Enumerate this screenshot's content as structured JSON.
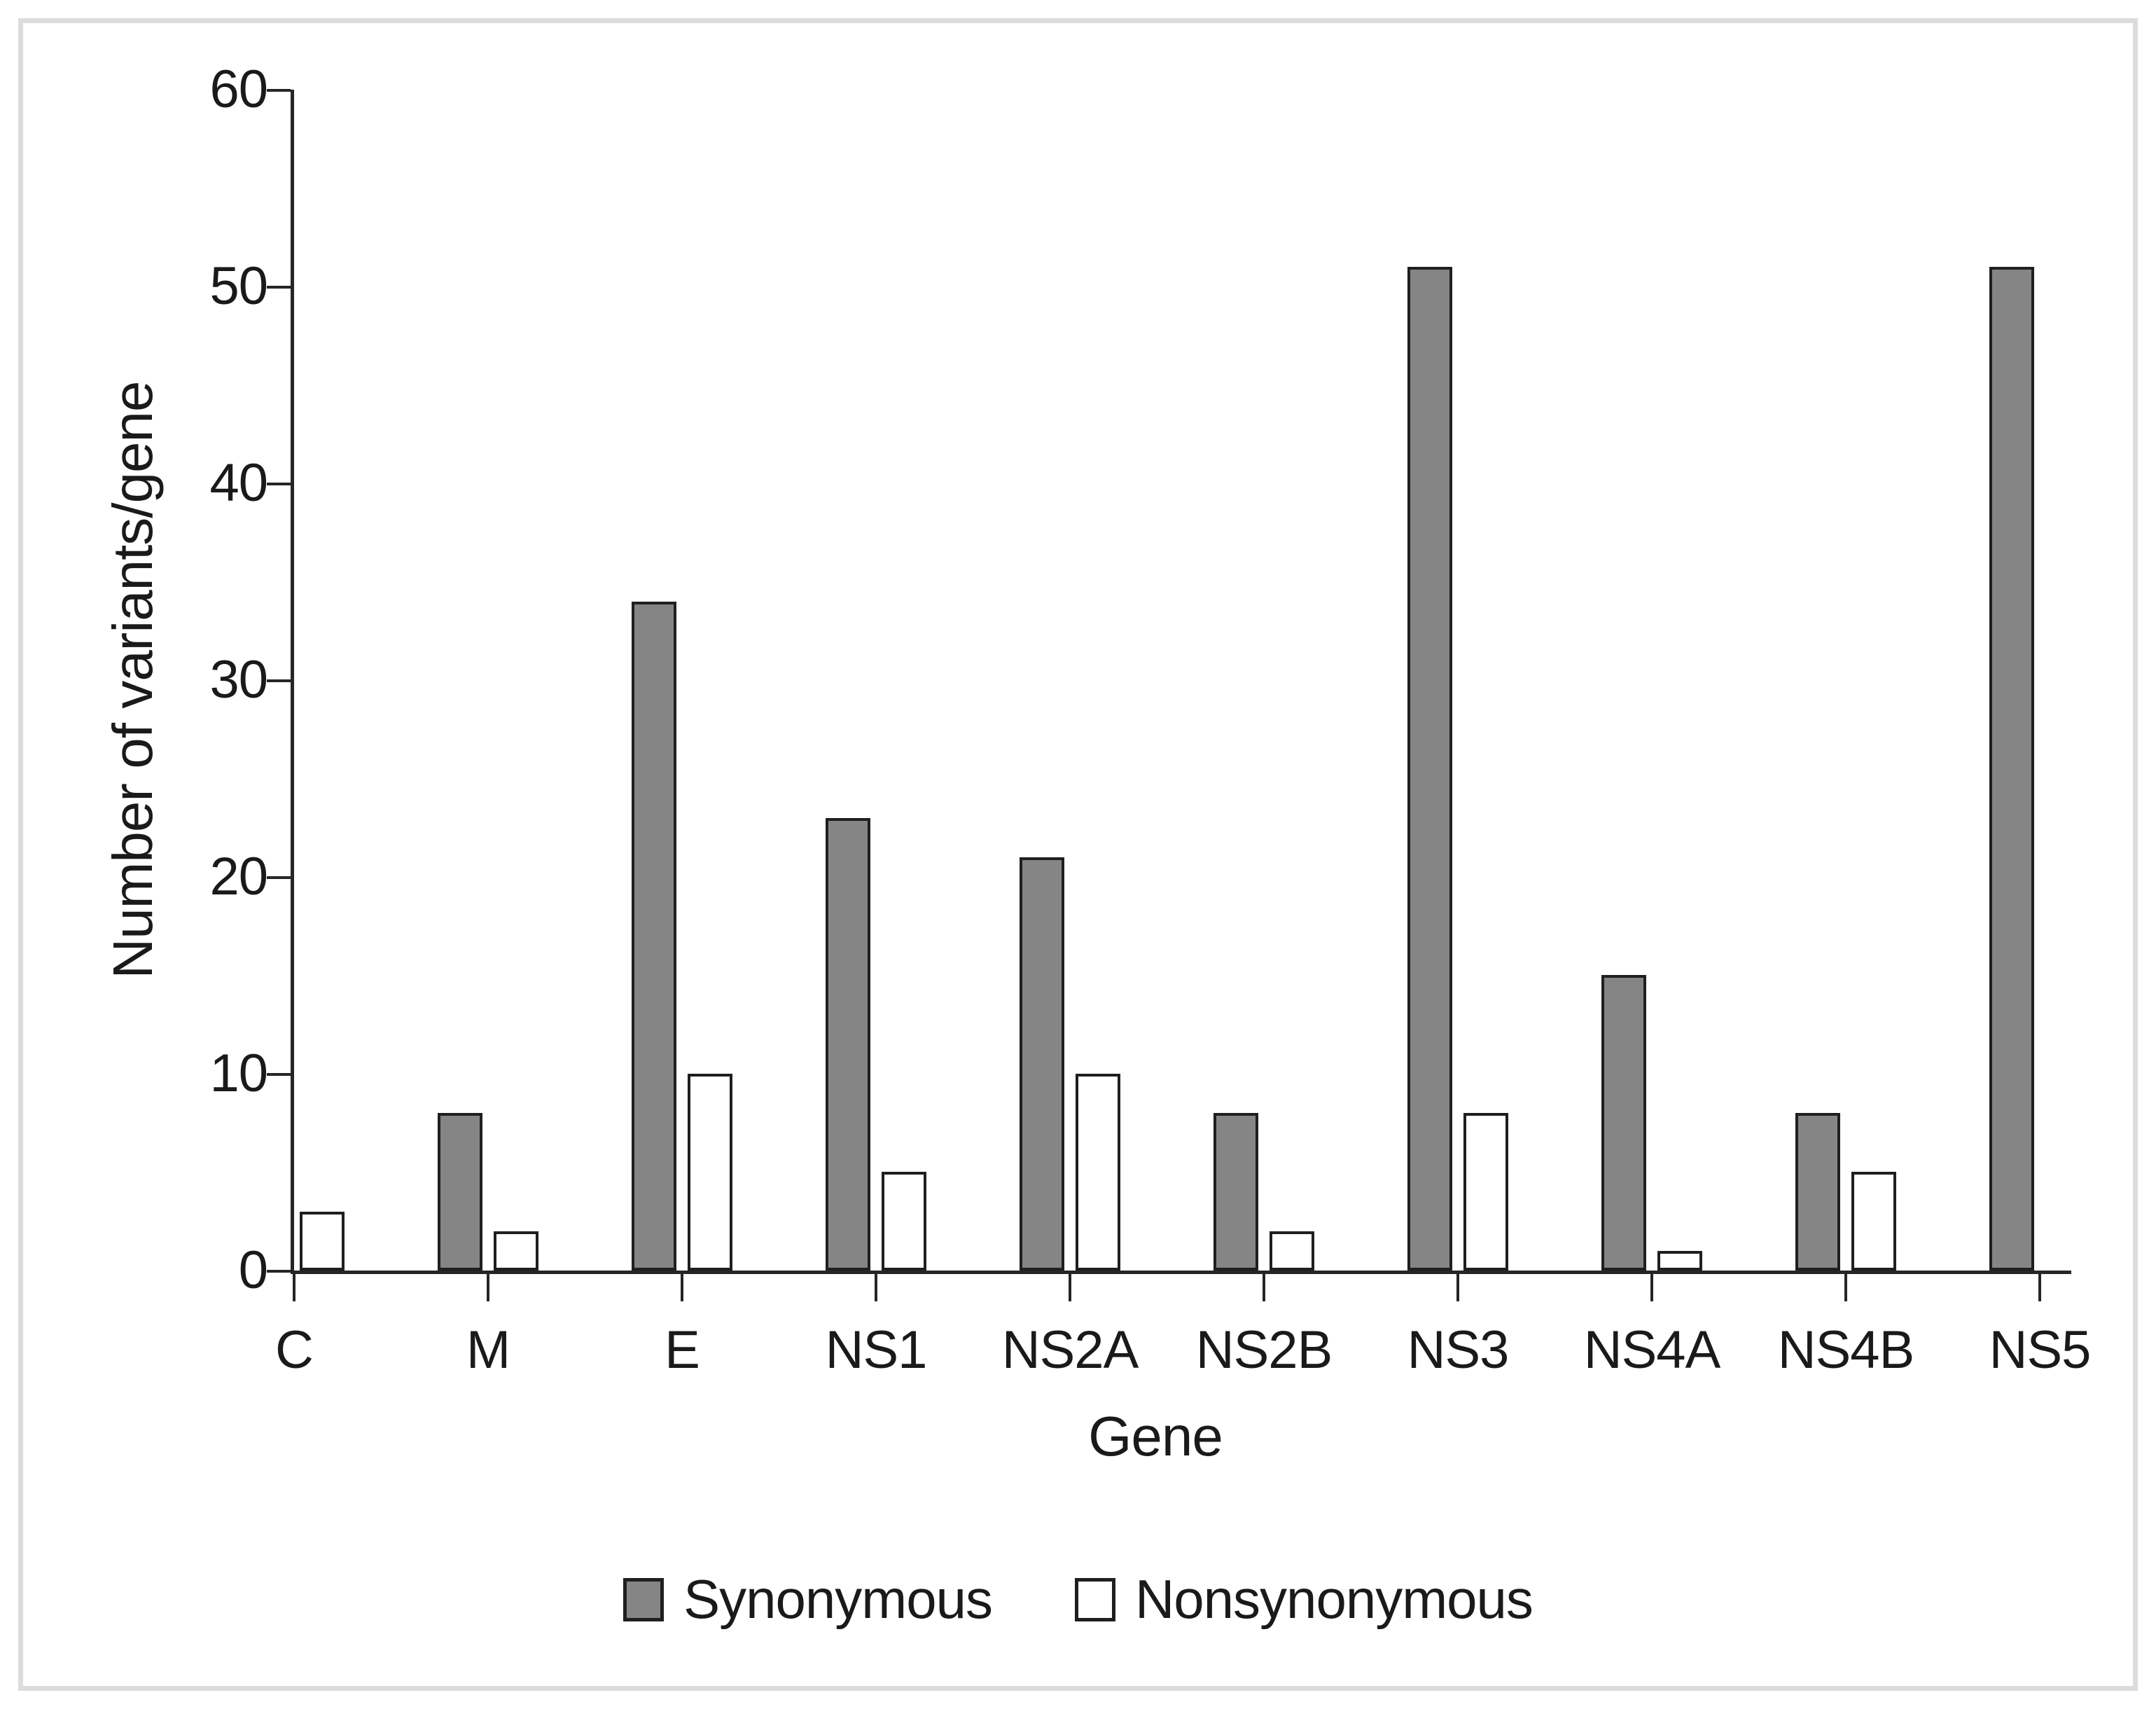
{
  "chart_data": {
    "type": "bar",
    "title": "",
    "categories": [
      "C",
      "M",
      "E",
      "NS1",
      "NS2A",
      "NS2B",
      "NS3",
      "NS4A",
      "NS4B",
      "NS5"
    ],
    "series": [
      {
        "name": "Synonymous",
        "fill": "#858585",
        "values": [
          0,
          8,
          34,
          23,
          21,
          8,
          51,
          15,
          8,
          51
        ]
      },
      {
        "name": "Nonsynonymous",
        "fill": "#ffffff",
        "values": [
          3,
          2,
          10,
          5,
          10,
          2,
          8,
          1,
          5,
          0
        ]
      }
    ],
    "xlabel": "Gene",
    "ylabel": "Number of variants/gene",
    "ylim": [
      0,
      60
    ],
    "yticks": [
      0,
      10,
      20,
      30,
      40,
      50,
      60
    ],
    "grid": false,
    "legend_position": "bottom",
    "colors": {
      "bar_border": "#1f1f1f",
      "axis": "#262626",
      "text": "#1a1a1a",
      "frame_border": "#dcdcdc",
      "background": "#ffffff"
    }
  }
}
